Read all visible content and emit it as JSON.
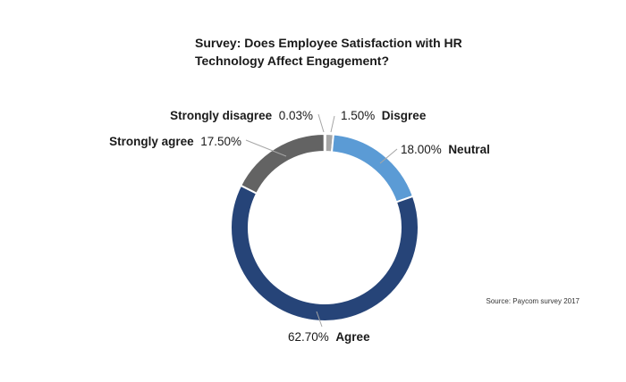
{
  "title_lines": [
    "Survey: Does Employee Satisfaction with HR",
    "Technology Affect Engagement?"
  ],
  "source": "Source: Paycom survey 2017",
  "chart_data": {
    "type": "pie",
    "donut": true,
    "title": "Survey: Does Employee Satisfaction with HR Technology Affect Engagement?",
    "slices": [
      {
        "label": "Disgree",
        "value": 1.5,
        "display": "1.50%",
        "color": "#a6a6a6"
      },
      {
        "label": "Neutral",
        "value": 18.0,
        "display": "18.00%",
        "color": "#5b9bd5"
      },
      {
        "label": "Agree",
        "value": 62.7,
        "display": "62.70%",
        "color": "#264478"
      },
      {
        "label": "Strongly agree",
        "value": 17.5,
        "display": "17.50%",
        "color": "#636363"
      },
      {
        "label": "Strongly disagree",
        "value": 0.03,
        "display": "0.03%",
        "color": "#404040"
      }
    ],
    "legend": "none",
    "data_labels": "outside with leader lines"
  }
}
